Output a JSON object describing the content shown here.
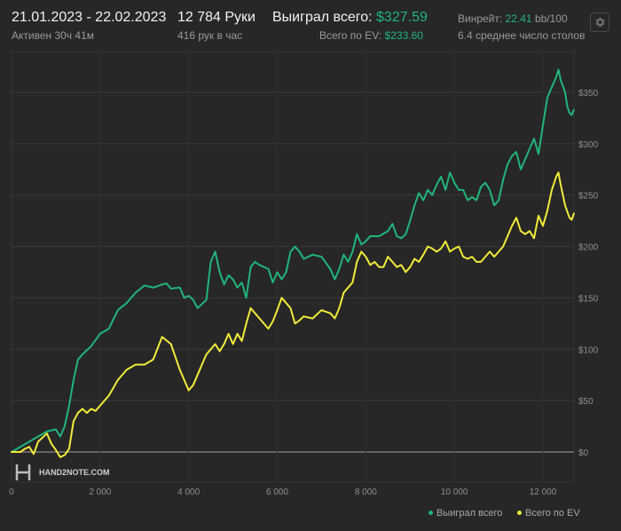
{
  "header": {
    "date_range": "21.01.2023 - 22.02.2023",
    "active": "Активен 30ч 41м",
    "hands": "12 784 Руки",
    "hands_per_hour": "416 рук в час",
    "won_label": "Выиграл всего:",
    "won_value": "$327.59",
    "ev_label": "Всего по EV:",
    "ev_value": "$233.60",
    "winrate_label": "Винрейт:",
    "winrate_value": "22.41",
    "winrate_unit": "bb/100",
    "tables_avg": "6.4 среднее число столов"
  },
  "watermark": "HAND2NOTE.COM",
  "settings": {
    "icon": "gear-icon"
  },
  "colors": {
    "won": "#21b57b",
    "ev": "#f2ec3a",
    "grid": "#3a3a3a",
    "zero_line": "#8a8a8a",
    "bg": "#272727"
  },
  "chart_data": {
    "type": "line",
    "title": "",
    "xlabel": "",
    "ylabel": "",
    "xlim": [
      0,
      12784
    ],
    "ylim": [
      -5,
      375
    ],
    "x_ticks": [
      0,
      2000,
      4000,
      6000,
      8000,
      10000,
      12000
    ],
    "x_tick_labels": [
      "0",
      "2 000",
      "4 000",
      "6 000",
      "8 000",
      "10 000",
      "12 000"
    ],
    "y_ticks": [
      0,
      50,
      100,
      150,
      200,
      250,
      300,
      350
    ],
    "y_tick_labels": [
      "$0",
      "$50",
      "$100",
      "$150",
      "$200",
      "$250",
      "$300",
      "$350"
    ],
    "legend_position": "bottom-right",
    "series": [
      {
        "name": "Выиграл всего",
        "points": [
          [
            0,
            0
          ],
          [
            200,
            5
          ],
          [
            400,
            10
          ],
          [
            600,
            15
          ],
          [
            800,
            20
          ],
          [
            1000,
            22
          ],
          [
            1100,
            15
          ],
          [
            1200,
            25
          ],
          [
            1300,
            45
          ],
          [
            1400,
            70
          ],
          [
            1500,
            90
          ],
          [
            1600,
            95
          ],
          [
            1800,
            103
          ],
          [
            2000,
            115
          ],
          [
            2200,
            120
          ],
          [
            2400,
            138
          ],
          [
            2600,
            145
          ],
          [
            2800,
            155
          ],
          [
            3000,
            162
          ],
          [
            3200,
            160
          ],
          [
            3400,
            163
          ],
          [
            3500,
            164
          ],
          [
            3600,
            159
          ],
          [
            3800,
            160
          ],
          [
            3900,
            150
          ],
          [
            4000,
            152
          ],
          [
            4100,
            148
          ],
          [
            4200,
            140
          ],
          [
            4400,
            148
          ],
          [
            4500,
            185
          ],
          [
            4600,
            195
          ],
          [
            4700,
            175
          ],
          [
            4800,
            163
          ],
          [
            4900,
            172
          ],
          [
            5000,
            168
          ],
          [
            5100,
            160
          ],
          [
            5200,
            165
          ],
          [
            5300,
            150
          ],
          [
            5400,
            180
          ],
          [
            5500,
            185
          ],
          [
            5600,
            182
          ],
          [
            5800,
            178
          ],
          [
            5900,
            165
          ],
          [
            6000,
            175
          ],
          [
            6100,
            168
          ],
          [
            6200,
            175
          ],
          [
            6300,
            195
          ],
          [
            6400,
            200
          ],
          [
            6500,
            195
          ],
          [
            6600,
            188
          ],
          [
            6800,
            192
          ],
          [
            7000,
            190
          ],
          [
            7200,
            178
          ],
          [
            7300,
            168
          ],
          [
            7400,
            178
          ],
          [
            7500,
            192
          ],
          [
            7600,
            185
          ],
          [
            7700,
            195
          ],
          [
            7800,
            212
          ],
          [
            7900,
            202
          ],
          [
            8000,
            205
          ],
          [
            8100,
            210
          ],
          [
            8300,
            210
          ],
          [
            8500,
            215
          ],
          [
            8600,
            222
          ],
          [
            8700,
            210
          ],
          [
            8800,
            208
          ],
          [
            8900,
            212
          ],
          [
            9000,
            225
          ],
          [
            9100,
            240
          ],
          [
            9200,
            252
          ],
          [
            9300,
            245
          ],
          [
            9400,
            255
          ],
          [
            9500,
            250
          ],
          [
            9600,
            260
          ],
          [
            9700,
            268
          ],
          [
            9800,
            255
          ],
          [
            9900,
            272
          ],
          [
            10000,
            262
          ],
          [
            10100,
            255
          ],
          [
            10200,
            255
          ],
          [
            10300,
            245
          ],
          [
            10400,
            248
          ],
          [
            10500,
            245
          ],
          [
            10600,
            258
          ],
          [
            10700,
            262
          ],
          [
            10800,
            255
          ],
          [
            10900,
            240
          ],
          [
            11000,
            245
          ],
          [
            11100,
            265
          ],
          [
            11200,
            280
          ],
          [
            11300,
            288
          ],
          [
            11400,
            292
          ],
          [
            11500,
            275
          ],
          [
            11600,
            285
          ],
          [
            11700,
            295
          ],
          [
            11800,
            305
          ],
          [
            11900,
            290
          ],
          [
            12000,
            318
          ],
          [
            12100,
            345
          ],
          [
            12200,
            355
          ],
          [
            12300,
            365
          ],
          [
            12350,
            372
          ],
          [
            12400,
            362
          ],
          [
            12500,
            350
          ],
          [
            12550,
            336
          ],
          [
            12600,
            330
          ],
          [
            12650,
            328
          ],
          [
            12700,
            333
          ]
        ]
      },
      {
        "name": "Всего по EV",
        "points": [
          [
            0,
            0
          ],
          [
            200,
            0
          ],
          [
            300,
            3
          ],
          [
            400,
            5
          ],
          [
            500,
            -2
          ],
          [
            600,
            10
          ],
          [
            700,
            14
          ],
          [
            800,
            18
          ],
          [
            900,
            8
          ],
          [
            1000,
            2
          ],
          [
            1100,
            -5
          ],
          [
            1200,
            -3
          ],
          [
            1300,
            3
          ],
          [
            1400,
            30
          ],
          [
            1500,
            38
          ],
          [
            1600,
            42
          ],
          [
            1700,
            38
          ],
          [
            1800,
            42
          ],
          [
            1900,
            40
          ],
          [
            2000,
            45
          ],
          [
            2200,
            55
          ],
          [
            2400,
            70
          ],
          [
            2600,
            80
          ],
          [
            2800,
            85
          ],
          [
            3000,
            85
          ],
          [
            3200,
            90
          ],
          [
            3400,
            112
          ],
          [
            3600,
            105
          ],
          [
            3800,
            80
          ],
          [
            4000,
            60
          ],
          [
            4100,
            65
          ],
          [
            4200,
            75
          ],
          [
            4300,
            85
          ],
          [
            4400,
            95
          ],
          [
            4500,
            100
          ],
          [
            4600,
            105
          ],
          [
            4700,
            98
          ],
          [
            4800,
            105
          ],
          [
            4900,
            115
          ],
          [
            5000,
            105
          ],
          [
            5100,
            115
          ],
          [
            5200,
            108
          ],
          [
            5300,
            125
          ],
          [
            5400,
            140
          ],
          [
            5500,
            135
          ],
          [
            5600,
            130
          ],
          [
            5700,
            125
          ],
          [
            5800,
            120
          ],
          [
            5900,
            127
          ],
          [
            6000,
            138
          ],
          [
            6100,
            150
          ],
          [
            6200,
            145
          ],
          [
            6300,
            140
          ],
          [
            6400,
            125
          ],
          [
            6500,
            128
          ],
          [
            6600,
            132
          ],
          [
            6800,
            130
          ],
          [
            7000,
            138
          ],
          [
            7200,
            135
          ],
          [
            7300,
            130
          ],
          [
            7400,
            140
          ],
          [
            7500,
            155
          ],
          [
            7600,
            160
          ],
          [
            7700,
            165
          ],
          [
            7800,
            185
          ],
          [
            7900,
            195
          ],
          [
            8000,
            190
          ],
          [
            8100,
            182
          ],
          [
            8200,
            185
          ],
          [
            8300,
            180
          ],
          [
            8400,
            180
          ],
          [
            8500,
            190
          ],
          [
            8600,
            185
          ],
          [
            8700,
            180
          ],
          [
            8800,
            182
          ],
          [
            8900,
            175
          ],
          [
            9000,
            180
          ],
          [
            9100,
            188
          ],
          [
            9200,
            185
          ],
          [
            9300,
            192
          ],
          [
            9400,
            200
          ],
          [
            9500,
            198
          ],
          [
            9600,
            195
          ],
          [
            9700,
            198
          ],
          [
            9800,
            205
          ],
          [
            9900,
            195
          ],
          [
            10000,
            198
          ],
          [
            10100,
            200
          ],
          [
            10200,
            190
          ],
          [
            10300,
            188
          ],
          [
            10400,
            190
          ],
          [
            10500,
            185
          ],
          [
            10600,
            185
          ],
          [
            10700,
            190
          ],
          [
            10800,
            195
          ],
          [
            10900,
            190
          ],
          [
            11000,
            195
          ],
          [
            11100,
            200
          ],
          [
            11200,
            210
          ],
          [
            11300,
            220
          ],
          [
            11400,
            228
          ],
          [
            11500,
            215
          ],
          [
            11600,
            212
          ],
          [
            11700,
            215
          ],
          [
            11800,
            208
          ],
          [
            11900,
            230
          ],
          [
            12000,
            220
          ],
          [
            12100,
            235
          ],
          [
            12200,
            255
          ],
          [
            12300,
            268
          ],
          [
            12350,
            272
          ],
          [
            12400,
            260
          ],
          [
            12500,
            240
          ],
          [
            12600,
            228
          ],
          [
            12650,
            226
          ],
          [
            12700,
            232
          ]
        ]
      }
    ]
  }
}
